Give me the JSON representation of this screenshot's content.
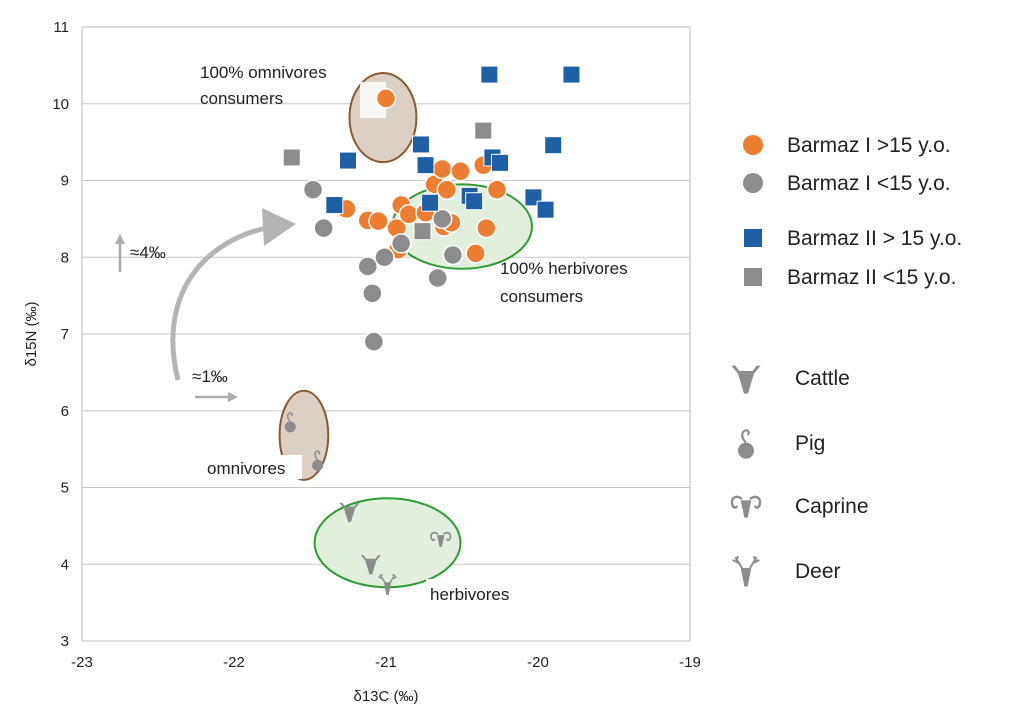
{
  "chart_data": {
    "type": "scatter",
    "xlabel": "δ13C (‰)",
    "ylabel": "δ15N (‰)",
    "xlim": [
      -23,
      -19
    ],
    "ylim": [
      3,
      11
    ],
    "x_ticks": [
      "-23",
      "-22",
      "-21",
      "-20",
      "-19"
    ],
    "y_ticks": [
      "3",
      "4",
      "5",
      "6",
      "7",
      "8",
      "9",
      "10",
      "11"
    ],
    "grid": "horizontal",
    "legend": "right",
    "series": [
      {
        "name": "Barmaz I >15 y.o.",
        "marker": "circle",
        "color": "#ED7D31",
        "points": [
          [
            -21.26,
            8.63
          ],
          [
            -21.12,
            8.48
          ],
          [
            -21.05,
            8.47
          ],
          [
            -20.93,
            8.38
          ],
          [
            -20.92,
            8.1
          ],
          [
            -20.9,
            8.68
          ],
          [
            -20.85,
            8.56
          ],
          [
            -20.74,
            8.58
          ],
          [
            -20.68,
            8.95
          ],
          [
            -20.63,
            9.15
          ],
          [
            -20.62,
            8.4
          ],
          [
            -20.6,
            8.88
          ],
          [
            -20.57,
            8.45
          ],
          [
            -20.51,
            9.12
          ],
          [
            -20.41,
            8.05
          ],
          [
            -20.36,
            9.2
          ],
          [
            -20.34,
            8.38
          ],
          [
            -20.27,
            8.88
          ],
          [
            -21.0,
            10.07
          ]
        ]
      },
      {
        "name": "Barmaz I <15 y.o.",
        "marker": "circle",
        "color": "#8C8C8C",
        "points": [
          [
            -21.48,
            8.88
          ],
          [
            -21.41,
            8.38
          ],
          [
            -21.12,
            7.88
          ],
          [
            -21.09,
            7.53
          ],
          [
            -21.08,
            6.9
          ],
          [
            -21.01,
            8.0
          ],
          [
            -20.9,
            8.18
          ],
          [
            -20.66,
            7.73
          ],
          [
            -20.63,
            8.5
          ],
          [
            -20.56,
            8.03
          ]
        ]
      },
      {
        "name": "Barmaz II > 15 y.o.",
        "marker": "square",
        "color": "#1F5FA6",
        "points": [
          [
            -21.34,
            8.68
          ],
          [
            -21.25,
            9.26
          ],
          [
            -20.77,
            9.47
          ],
          [
            -20.74,
            9.2
          ],
          [
            -20.71,
            8.71
          ],
          [
            -20.45,
            8.8
          ],
          [
            -20.42,
            8.73
          ],
          [
            -20.3,
            9.3
          ],
          [
            -20.25,
            9.23
          ],
          [
            -20.32,
            10.38
          ],
          [
            -20.03,
            8.78
          ],
          [
            -19.95,
            8.62
          ],
          [
            -19.9,
            9.46
          ],
          [
            -19.78,
            10.38
          ]
        ]
      },
      {
        "name": "Barmaz II <15 y.o.",
        "marker": "square",
        "color": "#8C8C8C",
        "points": [
          [
            -21.62,
            9.3
          ],
          [
            -20.76,
            8.34
          ],
          [
            -20.36,
            9.65
          ]
        ]
      }
    ],
    "fauna_legend": [
      {
        "name": "Cattle",
        "icon": "cattle-icon"
      },
      {
        "name": "Pig",
        "icon": "pig-icon"
      },
      {
        "name": "Caprine",
        "icon": "caprine-icon"
      },
      {
        "name": "Deer",
        "icon": "deer-icon"
      }
    ],
    "fauna_points": [
      {
        "animal": "Pig",
        "x": -21.63,
        "y": 5.85
      },
      {
        "animal": "Pig",
        "x": -21.45,
        "y": 5.35
      },
      {
        "animal": "Cattle",
        "x": -21.24,
        "y": 4.68
      },
      {
        "animal": "Cattle",
        "x": -21.1,
        "y": 4.0
      },
      {
        "animal": "Deer",
        "x": -20.99,
        "y": 3.73
      },
      {
        "animal": "Caprine",
        "x": -20.64,
        "y": 4.32
      }
    ],
    "ellipses": [
      {
        "label": "100% omnivores consumers",
        "cx": -21.02,
        "cy": 9.82,
        "rx": 0.22,
        "ry": 0.58,
        "fill": "#DCCFC4",
        "stroke": "#8A5A32"
      },
      {
        "label": "100% herbivores consumers",
        "cx": -20.5,
        "cy": 8.4,
        "rx": 0.46,
        "ry": 0.55,
        "fill": "#E2EFDD",
        "stroke": "#2E9B34"
      },
      {
        "label": "omnivores",
        "cx": -21.54,
        "cy": 5.68,
        "rx": 0.16,
        "ry": 0.58,
        "fill": "#DCCFC4",
        "stroke": "#8A5A32"
      },
      {
        "label": "herbivores",
        "cx": -20.99,
        "cy": 4.28,
        "rx": 0.48,
        "ry": 0.58,
        "fill": "#E2EFDD",
        "stroke": "#2E9B34"
      }
    ],
    "annotations": {
      "omni_consumers_1": "100% omnivores",
      "omni_consumers_2": "consumers",
      "herb_consumers_1": "100% herbivores",
      "herb_consumers_2": "consumers",
      "omnivores": "omnivores",
      "herbivores": "herbivores",
      "delta_n": "≈4‰",
      "delta_c": "≈1‰"
    }
  }
}
